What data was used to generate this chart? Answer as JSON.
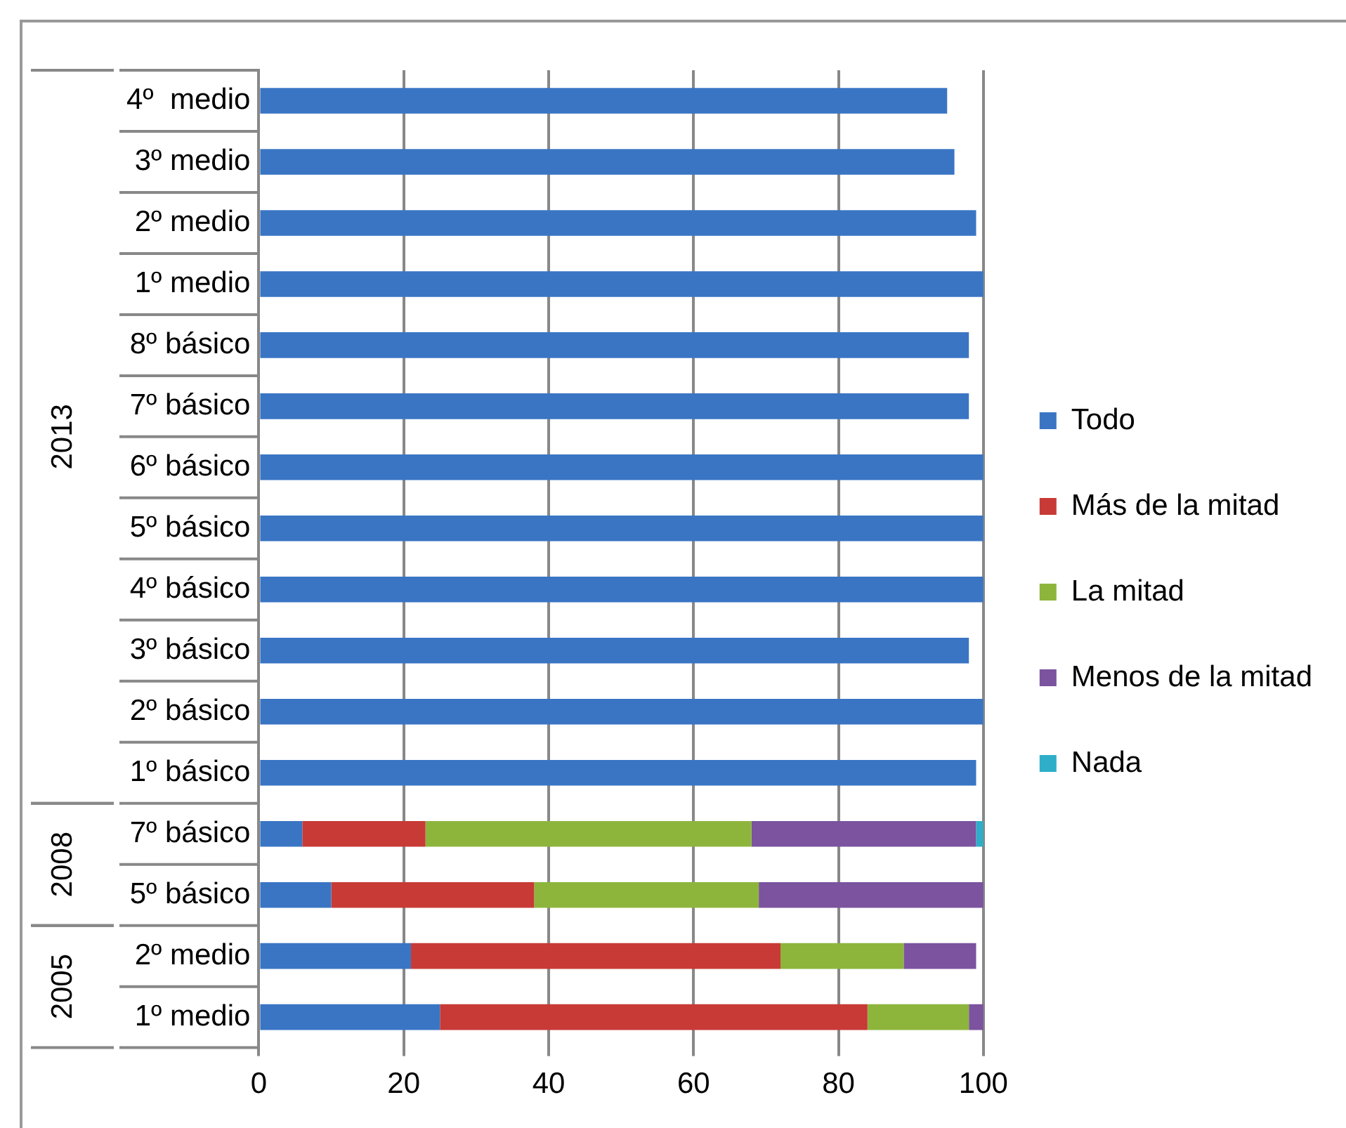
{
  "chart_data": {
    "type": "bar",
    "orientation": "horizontal",
    "stacked": true,
    "categories": [
      "4º  medio",
      "3º medio",
      "2º medio",
      "1º medio",
      "8º básico",
      "7º básico",
      "6º básico",
      "5º básico",
      "4º básico",
      "3º básico",
      "2º básico",
      "1º básico",
      "7º básico",
      "5º básico",
      "2º medio",
      "1º medio"
    ],
    "series": [
      {
        "name": "Todo",
        "color": "#3a75c4",
        "values": [
          95,
          96,
          99,
          100,
          98,
          98,
          100,
          100,
          100,
          98,
          100,
          99,
          6,
          10,
          21,
          25
        ]
      },
      {
        "name": "Más de la mitad",
        "color": "#c83a36",
        "values": [
          null,
          null,
          null,
          null,
          null,
          null,
          null,
          null,
          null,
          null,
          null,
          null,
          17,
          28,
          51,
          59
        ]
      },
      {
        "name": "La mitad",
        "color": "#8db53c",
        "values": [
          null,
          null,
          null,
          null,
          null,
          null,
          null,
          null,
          null,
          null,
          null,
          null,
          45,
          31,
          17,
          14
        ]
      },
      {
        "name": "Menos de la mitad",
        "color": "#7b539e",
        "values": [
          null,
          null,
          null,
          null,
          null,
          null,
          null,
          null,
          null,
          null,
          null,
          null,
          31,
          31,
          10,
          2
        ]
      },
      {
        "name": "Nada",
        "color": "#2eaec9",
        "values": [
          null,
          null,
          null,
          null,
          null,
          null,
          null,
          null,
          null,
          null,
          null,
          null,
          1,
          null,
          null,
          null
        ]
      }
    ],
    "xlim": [
      0,
      100
    ],
    "xticks": [
      0,
      20,
      40,
      60,
      80,
      100
    ],
    "grid": "x",
    "legend": "right",
    "annotations": [
      "2013",
      "2008",
      "2005"
    ]
  }
}
